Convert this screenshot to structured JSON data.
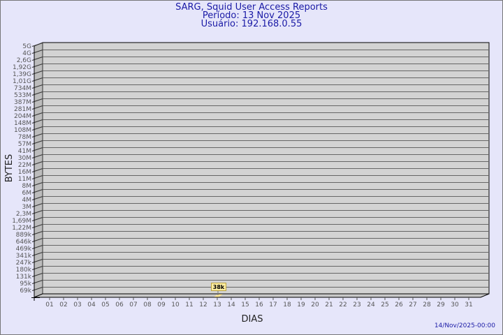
{
  "chart_data": {
    "type": "bar",
    "title": "SARG, Squid User Access Reports",
    "subtitle_lines": [
      "Período: 13 Nov 2025",
      "Usuário: 192.168.0.55"
    ],
    "xlabel": "DIAS",
    "ylabel": "BYTES",
    "y_scale": "log",
    "y_tick_labels": [
      "5G",
      "4G",
      "2,6G",
      "1,92G",
      "1,39G",
      "1,01G",
      "734M",
      "533M",
      "387M",
      "281M",
      "204M",
      "148M",
      "108M",
      "78M",
      "57M",
      "41M",
      "30M",
      "22M",
      "16M",
      "11M",
      "8M",
      "6M",
      "4M",
      "3M",
      "2,3M",
      "1,69M",
      "1,22M",
      "889k",
      "646k",
      "469k",
      "341k",
      "247k",
      "180k",
      "131k",
      "95k",
      "69k"
    ],
    "categories": [
      "01",
      "02",
      "03",
      "04",
      "05",
      "06",
      "07",
      "08",
      "09",
      "10",
      "11",
      "12",
      "13",
      "14",
      "15",
      "16",
      "17",
      "18",
      "19",
      "20",
      "21",
      "22",
      "23",
      "24",
      "25",
      "26",
      "27",
      "28",
      "29",
      "30",
      "31"
    ],
    "bars": [
      {
        "category": "13",
        "value": 38000,
        "label": "38k"
      }
    ],
    "grid": true,
    "colors": {
      "background": "#e6e6fa",
      "plot": "#d3d3d3",
      "bar": "#ffe89a",
      "title": "#1a1aa6"
    }
  },
  "footer": {
    "timestamp": "14/Nov/2025-00:00"
  }
}
